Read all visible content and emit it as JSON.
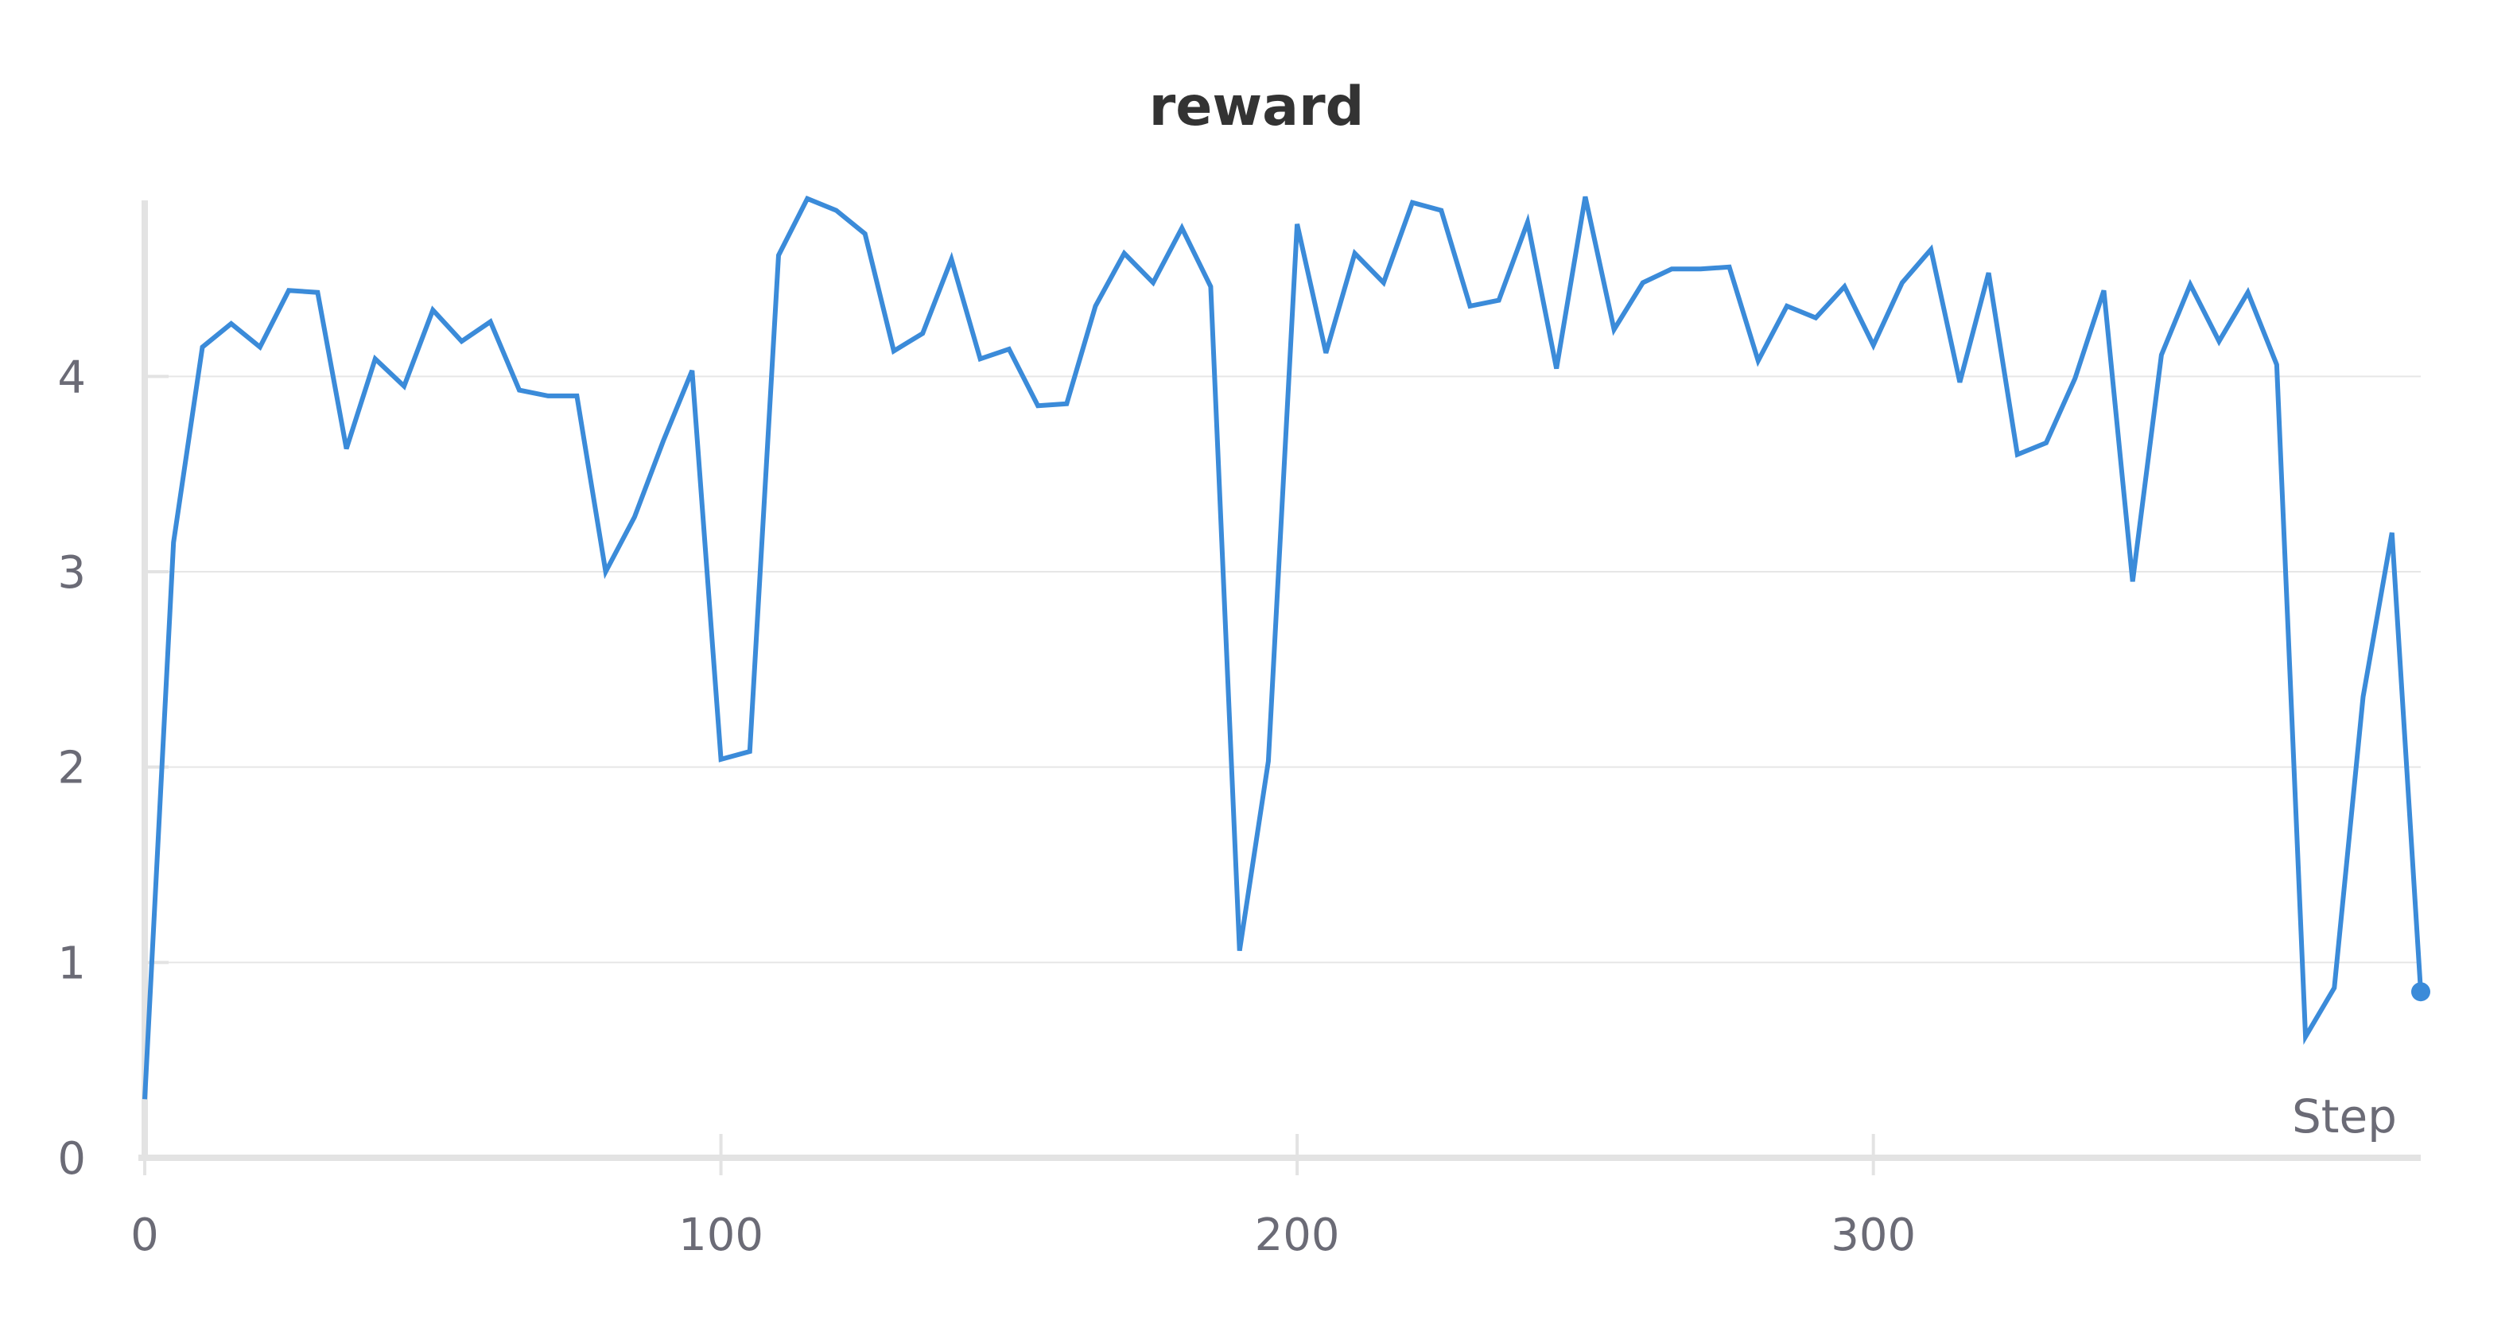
{
  "chart_data": {
    "type": "line",
    "title": "reward",
    "xlabel": "Step",
    "ylabel": "",
    "xlim": [
      0,
      395
    ],
    "ylim": [
      0,
      4.95
    ],
    "xticks": [
      0,
      100,
      200,
      300
    ],
    "yticks": [
      0,
      1,
      2,
      3,
      4
    ],
    "grid": "horizontal",
    "line_color": "#3b8bd9",
    "series": [
      {
        "x": [
          0,
          5,
          10,
          15,
          20,
          25,
          30,
          35,
          40,
          45,
          50,
          55,
          60,
          65,
          70,
          75,
          80,
          85,
          90,
          95,
          100,
          105,
          110,
          115,
          120,
          125,
          130,
          135,
          140,
          145,
          150,
          155,
          160,
          165,
          170,
          175,
          180,
          185,
          190,
          195,
          200,
          205,
          210,
          215,
          220,
          225,
          230,
          235,
          240,
          245,
          250,
          255,
          260,
          265,
          270,
          275,
          280,
          285,
          290,
          295,
          300,
          305,
          310,
          315,
          320,
          325,
          330,
          335,
          340,
          345,
          350,
          355,
          360,
          365,
          370,
          375,
          380,
          385,
          390,
          395
        ],
        "values": [
          0.3,
          3.15,
          4.15,
          4.27,
          4.15,
          4.44,
          4.43,
          3.63,
          4.09,
          3.95,
          4.34,
          4.18,
          4.28,
          3.93,
          3.9,
          3.9,
          3.0,
          3.28,
          3.67,
          4.03,
          2.04,
          2.08,
          4.62,
          4.91,
          4.85,
          4.73,
          4.13,
          4.22,
          4.6,
          4.09,
          4.14,
          3.85,
          3.86,
          4.36,
          4.63,
          4.48,
          4.76,
          4.46,
          1.06,
          2.03,
          4.78,
          4.12,
          4.63,
          4.48,
          4.89,
          4.85,
          4.36,
          4.39,
          4.79,
          4.04,
          4.92,
          4.24,
          4.48,
          4.55,
          4.55,
          4.56,
          4.08,
          4.36,
          4.3,
          4.46,
          4.16,
          4.48,
          4.65,
          3.97,
          4.53,
          3.6,
          3.66,
          3.99,
          4.44,
          2.95,
          4.11,
          4.47,
          4.18,
          4.43,
          4.06,
          0.62,
          0.87,
          2.36,
          3.2,
          0.85
        ]
      }
    ]
  }
}
